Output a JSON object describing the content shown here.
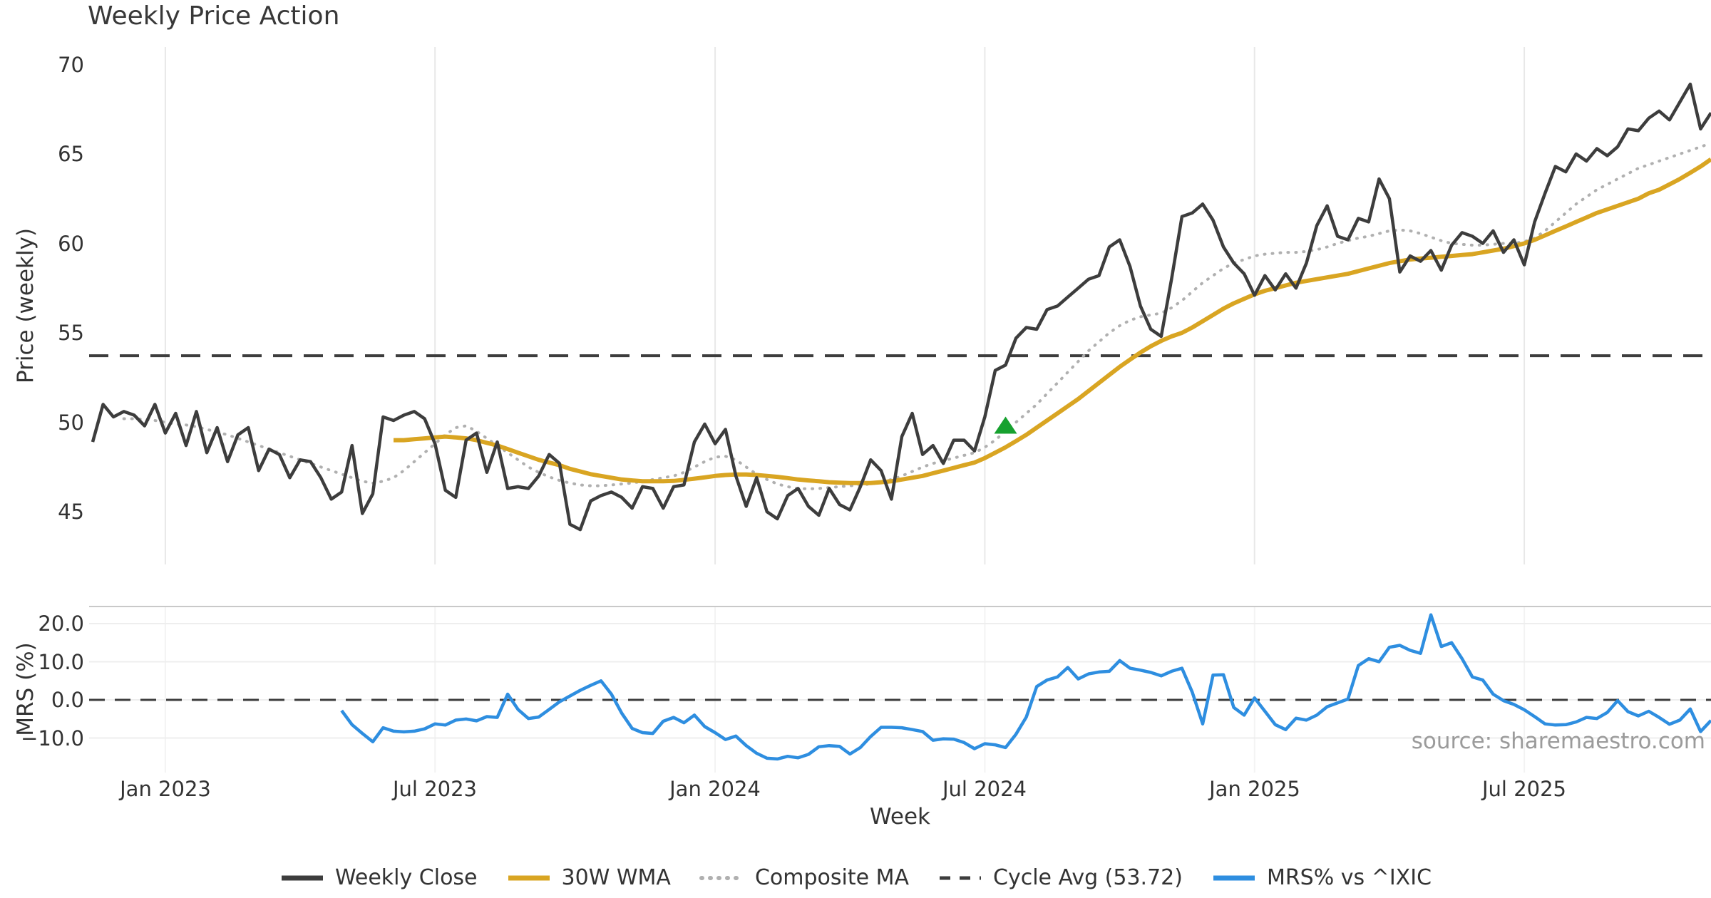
{
  "title": "Weekly Price Action",
  "source_note": "source: sharemaestro.com",
  "chart_data": {
    "type": "line",
    "x": {
      "label": "Week",
      "n_weeks": 157,
      "tick_weeks": [
        7,
        33,
        60,
        86,
        112,
        138
      ],
      "tick_labels": [
        "Jan 2023",
        "Jul 2023",
        "Jan 2024",
        "Jul 2024",
        "Jan 2025",
        "Jul 2025"
      ]
    },
    "legend": [
      {
        "label": "Weekly Close",
        "style": "solid",
        "color": "#3d3d3d"
      },
      {
        "label": "30W WMA",
        "style": "solid",
        "color": "#d9a522"
      },
      {
        "label": "Composite MA",
        "style": "dotted",
        "color": "#b0b0b0"
      },
      {
        "label": "Cycle Avg (53.72)",
        "style": "dashed",
        "color": "#3d3d3d"
      },
      {
        "label": "MRS% vs ^IXIC",
        "style": "solid",
        "color": "#2e8ee0"
      }
    ],
    "panels": [
      {
        "name": "price",
        "ylabel": "Price (weekly)",
        "ylim": [
          42,
          71
        ],
        "y_ticks": [
          {
            "label": "70",
            "value": 70
          },
          {
            "label": "65",
            "value": 65
          },
          {
            "label": "60",
            "value": 60
          },
          {
            "label": "55",
            "value": 55
          },
          {
            "label": "50",
            "value": 50
          },
          {
            "label": "45",
            "value": 45
          }
        ],
        "reference_line": {
          "label": "Cycle Avg (53.72)",
          "value": 53.72,
          "style": "dashed",
          "color": "#3d3d3d"
        },
        "signal_marker": {
          "shape": "triangle-up",
          "color": "#17a12f",
          "week_index": 88,
          "price": 49.8
        },
        "series": [
          {
            "name": "Weekly Close",
            "color": "#3d3d3d",
            "style": "solid",
            "width": 4.5,
            "values": [
              48.9,
              51.0,
              50.3,
              50.6,
              50.4,
              49.8,
              51.0,
              49.4,
              50.5,
              48.7,
              50.6,
              48.3,
              49.7,
              47.8,
              49.3,
              49.7,
              47.3,
              48.5,
              48.2,
              46.9,
              47.9,
              47.8,
              46.9,
              45.7,
              46.1,
              48.7,
              44.9,
              46.0,
              50.3,
              50.1,
              50.4,
              50.6,
              50.2,
              48.8,
              46.2,
              45.8,
              49.0,
              49.4,
              47.2,
              48.9,
              46.3,
              46.4,
              46.3,
              47.0,
              48.2,
              47.7,
              44.3,
              44.0,
              45.6,
              45.9,
              46.1,
              45.8,
              45.2,
              46.4,
              46.3,
              45.2,
              46.4,
              46.5,
              48.9,
              49.9,
              48.8,
              49.6,
              47.0,
              45.3,
              46.9,
              45.0,
              44.6,
              45.9,
              46.3,
              45.3,
              44.8,
              46.3,
              45.4,
              45.1,
              46.4,
              47.9,
              47.3,
              45.7,
              49.2,
              50.5,
              48.2,
              48.7,
              47.7,
              49.0,
              49.0,
              48.4,
              50.3,
              52.9,
              53.2,
              54.7,
              55.3,
              55.2,
              56.3,
              56.5,
              57.0,
              57.5,
              58.0,
              58.2,
              59.8,
              60.2,
              58.7,
              56.5,
              55.2,
              54.8,
              58.0,
              61.5,
              61.7,
              62.2,
              61.3,
              59.8,
              58.9,
              58.3,
              57.1,
              58.2,
              57.4,
              58.3,
              57.5,
              58.9,
              61.0,
              62.1,
              60.4,
              60.2,
              61.4,
              61.2,
              63.6,
              62.5,
              58.4,
              59.3,
              59.0,
              59.6,
              58.5,
              59.9,
              60.6,
              60.4,
              60.0,
              60.7,
              59.5,
              60.2,
              58.8,
              61.2,
              62.8,
              64.3,
              64.0,
              65.0,
              64.6,
              65.3,
              64.9,
              65.4,
              66.4,
              66.3,
              67.0,
              67.4,
              66.9,
              67.9,
              68.9,
              66.4,
              67.3
            ]
          },
          {
            "name": "30W WMA",
            "color": "#d9a522",
            "style": "solid",
            "width": 6,
            "values": [
              null,
              null,
              null,
              null,
              null,
              null,
              null,
              null,
              null,
              null,
              null,
              null,
              null,
              null,
              null,
              null,
              null,
              null,
              null,
              null,
              null,
              null,
              null,
              null,
              null,
              null,
              null,
              null,
              null,
              49.0,
              49.0,
              49.05,
              49.1,
              49.15,
              49.2,
              49.15,
              49.1,
              49.0,
              48.85,
              48.7,
              48.5,
              48.3,
              48.1,
              47.9,
              47.75,
              47.6,
              47.4,
              47.25,
              47.1,
              47.0,
              46.9,
              46.8,
              46.75,
              46.7,
              46.7,
              46.7,
              46.72,
              46.78,
              46.85,
              46.92,
              47.0,
              47.05,
              47.08,
              47.08,
              47.05,
              47.0,
              46.95,
              46.88,
              46.8,
              46.75,
              46.7,
              46.65,
              46.62,
              46.6,
              46.6,
              46.6,
              46.65,
              46.7,
              46.8,
              46.9,
              47.0,
              47.15,
              47.3,
              47.45,
              47.6,
              47.75,
              48.0,
              48.3,
              48.6,
              48.95,
              49.3,
              49.7,
              50.1,
              50.5,
              50.9,
              51.3,
              51.75,
              52.2,
              52.65,
              53.1,
              53.5,
              53.9,
              54.25,
              54.55,
              54.8,
              55.0,
              55.3,
              55.65,
              56.0,
              56.35,
              56.65,
              56.9,
              57.15,
              57.35,
              57.5,
              57.65,
              57.8,
              57.9,
              58.0,
              58.1,
              58.2,
              58.3,
              58.45,
              58.6,
              58.75,
              58.9,
              59.0,
              59.1,
              59.15,
              59.2,
              59.25,
              59.3,
              59.35,
              59.4,
              59.5,
              59.6,
              59.7,
              59.85,
              60.0,
              60.2,
              60.45,
              60.7,
              60.95,
              61.2,
              61.45,
              61.7,
              61.9,
              62.1,
              62.3,
              62.5,
              62.8,
              63.0,
              63.3,
              63.6,
              63.95,
              64.3,
              64.7
            ]
          },
          {
            "name": "Composite MA",
            "color": "#b0b0b0",
            "style": "dotted",
            "width": 4,
            "values": [
              null,
              null,
              null,
              50.2,
              50.2,
              50.15,
              50.1,
              50.0,
              49.9,
              49.85,
              49.75,
              49.6,
              49.45,
              49.3,
              49.1,
              48.9,
              48.7,
              48.5,
              48.3,
              48.1,
              47.9,
              47.7,
              47.5,
              47.3,
              47.1,
              46.9,
              46.7,
              46.6,
              46.7,
              46.9,
              47.3,
              47.8,
              48.3,
              48.8,
              49.3,
              49.7,
              49.8,
              49.5,
              49.1,
              48.7,
              48.3,
              47.9,
              47.5,
              47.2,
              46.95,
              46.75,
              46.6,
              46.5,
              46.45,
              46.45,
              46.5,
              46.55,
              46.6,
              46.7,
              46.8,
              46.9,
              47.0,
              47.2,
              47.5,
              47.8,
              48.05,
              48.1,
              47.9,
              47.5,
              47.1,
              46.8,
              46.55,
              46.4,
              46.3,
              46.28,
              46.3,
              46.35,
              46.4,
              46.45,
              46.5,
              46.55,
              46.65,
              46.8,
              47.0,
              47.25,
              47.5,
              47.7,
              47.85,
              48.0,
              48.15,
              48.3,
              48.6,
              49.0,
              49.5,
              50.0,
              50.5,
              51.0,
              51.6,
              52.2,
              52.8,
              53.4,
              54.0,
              54.5,
              55.0,
              55.4,
              55.7,
              55.9,
              56.0,
              56.1,
              56.4,
              56.8,
              57.3,
              57.8,
              58.2,
              58.6,
              58.9,
              59.1,
              59.3,
              59.4,
              59.45,
              59.5,
              59.5,
              59.55,
              59.65,
              59.8,
              60.0,
              60.15,
              60.3,
              60.4,
              60.55,
              60.7,
              60.75,
              60.7,
              60.55,
              60.35,
              60.15,
              60.0,
              59.95,
              59.9,
              59.9,
              59.95,
              60.0,
              60.0,
              60.1,
              60.3,
              60.7,
              61.2,
              61.7,
              62.2,
              62.6,
              63.0,
              63.3,
              63.6,
              63.9,
              64.2,
              64.4,
              64.6,
              64.8,
              65.0,
              65.2,
              65.4,
              65.6
            ]
          }
        ]
      },
      {
        "name": "mrs",
        "ylabel": "MRS (%)",
        "ylim": [
          -19,
          24.5
        ],
        "y_ticks": [
          {
            "label": "20.0",
            "value": 20
          },
          {
            "label": "10.0",
            "value": 10
          },
          {
            "label": "0.0",
            "value": 0
          },
          {
            "label": "−10.0",
            "value": -10
          }
        ],
        "grid_values": [
          20,
          10,
          0,
          -10
        ],
        "reference_line": {
          "label": "zero line",
          "value": 0,
          "style": "dashed",
          "color": "#3d3d3d"
        },
        "series": [
          {
            "name": "MRS% vs ^IXIC",
            "color": "#2e8ee0",
            "style": "solid",
            "width": 4.5,
            "values": [
              null,
              null,
              null,
              null,
              null,
              null,
              null,
              null,
              null,
              null,
              null,
              null,
              null,
              null,
              null,
              null,
              null,
              null,
              null,
              null,
              null,
              null,
              null,
              null,
              -2.8,
              -6.5,
              -8.8,
              -11.0,
              -7.3,
              -8.2,
              -8.4,
              -8.2,
              -7.6,
              -6.3,
              -6.6,
              -5.3,
              -5.0,
              -5.5,
              -4.4,
              -4.6,
              1.5,
              -2.5,
              -4.9,
              -4.5,
              -2.5,
              -0.5,
              1.0,
              2.5,
              3.8,
              5.0,
              1.5,
              -3.5,
              -7.5,
              -8.6,
              -8.8,
              -5.6,
              -4.6,
              -6.0,
              -4.0,
              -7.0,
              -8.6,
              -10.4,
              -9.5,
              -12.0,
              -14.0,
              -15.3,
              -15.5,
              -14.8,
              -15.2,
              -14.3,
              -12.3,
              -12.0,
              -12.2,
              -14.2,
              -12.5,
              -9.6,
              -7.2,
              -7.2,
              -7.3,
              -7.8,
              -8.3,
              -10.6,
              -10.2,
              -10.3,
              -11.2,
              -12.8,
              -11.5,
              -11.8,
              -12.5,
              -9.0,
              -4.5,
              3.5,
              5.2,
              6.0,
              8.5,
              5.5,
              6.8,
              7.3,
              7.5,
              10.3,
              8.3,
              7.8,
              7.2,
              6.3,
              7.5,
              8.3,
              2.0,
              -6.3,
              6.5,
              6.6,
              -2.0,
              -4.0,
              0.5,
              -3.0,
              -6.5,
              -7.8,
              -4.8,
              -5.3,
              -4.0,
              -1.8,
              -0.8,
              0.2,
              9.0,
              10.8,
              10.0,
              13.8,
              14.3,
              13.0,
              12.2,
              22.3,
              14.0,
              15.0,
              10.8,
              6.0,
              5.2,
              1.5,
              -0.2,
              -1.2,
              -2.6,
              -4.4,
              -6.3,
              -6.6,
              -6.5,
              -5.8,
              -4.6,
              -4.9,
              -3.3,
              -0.2,
              -3.1,
              -4.2,
              -3.0,
              -4.6,
              -6.4,
              -5.3,
              -2.4,
              -8.3,
              -5.4
            ]
          }
        ]
      }
    ]
  }
}
